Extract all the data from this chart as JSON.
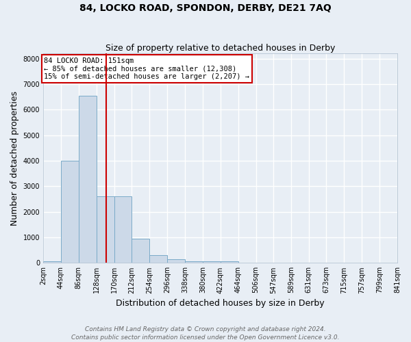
{
  "title": "84, LOCKO ROAD, SPONDON, DERBY, DE21 7AQ",
  "subtitle": "Size of property relative to detached houses in Derby",
  "xlabel": "Distribution of detached houses by size in Derby",
  "ylabel": "Number of detached properties",
  "bin_edges": [
    2,
    44,
    86,
    128,
    170,
    212,
    254,
    296,
    338,
    380,
    422,
    464,
    506,
    547,
    589,
    631,
    673,
    715,
    757,
    799,
    841
  ],
  "bar_heights": [
    75,
    4000,
    6550,
    2600,
    2600,
    950,
    300,
    130,
    75,
    50,
    50,
    0,
    0,
    0,
    0,
    0,
    0,
    0,
    0,
    0
  ],
  "bar_color": "#ccd9e8",
  "bar_edgecolor": "#7aaac8",
  "vline_x": 151,
  "vline_color": "#cc0000",
  "annotation_text": "84 LOCKO ROAD: 151sqm\n← 85% of detached houses are smaller (12,308)\n15% of semi-detached houses are larger (2,207) →",
  "annotation_box_facecolor": "#ffffff",
  "annotation_box_edgecolor": "#cc0000",
  "ylim": [
    0,
    8200
  ],
  "yticks": [
    0,
    1000,
    2000,
    3000,
    4000,
    5000,
    6000,
    7000,
    8000
  ],
  "tick_labels": [
    "2sqm",
    "44sqm",
    "86sqm",
    "128sqm",
    "170sqm",
    "212sqm",
    "254sqm",
    "296sqm",
    "338sqm",
    "380sqm",
    "422sqm",
    "464sqm",
    "506sqm",
    "547sqm",
    "589sqm",
    "631sqm",
    "673sqm",
    "715sqm",
    "757sqm",
    "799sqm",
    "841sqm"
  ],
  "footnote": "Contains HM Land Registry data © Crown copyright and database right 2024.\nContains public sector information licensed under the Open Government Licence v3.0.",
  "background_color": "#e8eef5",
  "plot_bg_color": "#e8eef5",
  "grid_color": "#ffffff",
  "title_fontsize": 10,
  "subtitle_fontsize": 9,
  "axis_label_fontsize": 9,
  "tick_fontsize": 7,
  "footnote_fontsize": 6.5,
  "annotation_fontsize": 7.5
}
